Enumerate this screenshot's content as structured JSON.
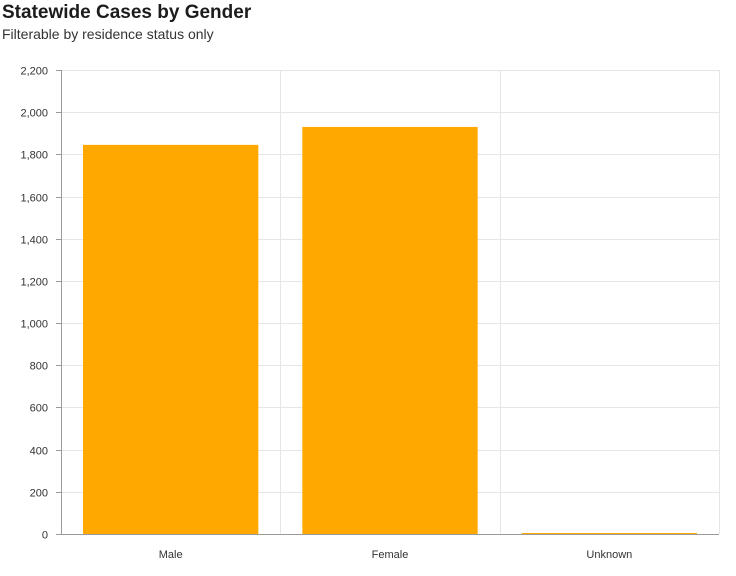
{
  "chart_data": {
    "type": "bar",
    "title": "Statewide Cases by Gender",
    "subtitle": "Filterable by residence status only",
    "categories": [
      "Male",
      "Female",
      "Unknown"
    ],
    "values": [
      1845,
      1930,
      3
    ],
    "ylim": [
      0,
      2200
    ],
    "yticks": [
      0,
      200,
      400,
      600,
      800,
      1000,
      1200,
      1400,
      1600,
      1800,
      2000,
      2200
    ],
    "ytick_labels": [
      "0",
      "200",
      "400",
      "600",
      "800",
      "1,000",
      "1,200",
      "1,400",
      "1,600",
      "1,800",
      "2,000",
      "2,200"
    ],
    "xlabel": "",
    "ylabel": "",
    "grid": true,
    "legend": "none",
    "bar_color": "#FFA800",
    "grid_color": "#E6E6E6",
    "axis_color": "#9A9A9A"
  }
}
